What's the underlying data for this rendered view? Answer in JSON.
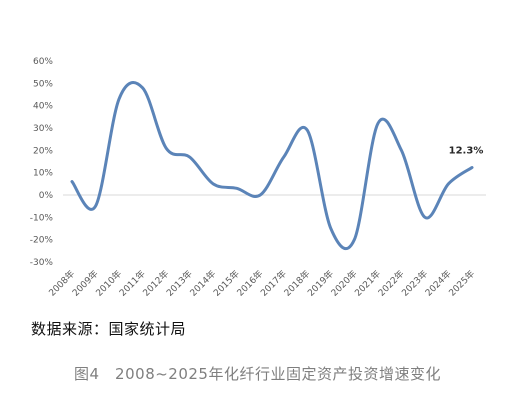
{
  "chart_data": {
    "type": "line",
    "categories": [
      "2008年",
      "2009年",
      "2010年",
      "2011年",
      "2012年",
      "2013年",
      "2014年",
      "2015年",
      "2016年",
      "2017年",
      "2018年",
      "2019年",
      "2020年",
      "2021年",
      "2022年",
      "2023年",
      "2024年",
      "2025年"
    ],
    "series": [
      {
        "values": [
          6,
          -5,
          43,
          48,
          21,
          17,
          5,
          3,
          0,
          17,
          29,
          -15,
          -20,
          32,
          20,
          -10,
          5,
          12.3
        ]
      }
    ],
    "ylim": [
      -30,
      60
    ],
    "yticks": [
      -30,
      -20,
      -10,
      0,
      10,
      20,
      30,
      40,
      50,
      60
    ],
    "ytick_labels": [
      "-30%",
      "-20%",
      "-10%",
      "0%",
      "10%",
      "20%",
      "30%",
      "40%",
      "50%",
      "60%"
    ],
    "annotation": {
      "label": "12.3%",
      "category": "2025年",
      "value": 12.3
    },
    "line_color": "#5b84b8",
    "grid": false
  },
  "source_label": "数据来源：国家统计局",
  "caption": "图4　2008~2025年化纤行业固定资产投资增速变化"
}
